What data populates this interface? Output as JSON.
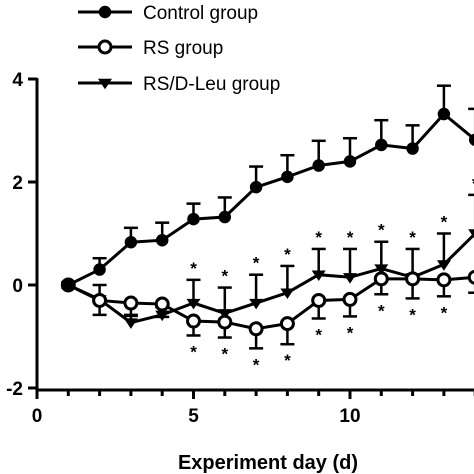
{
  "chart_data": {
    "type": "line",
    "title": "",
    "xlabel": "Experiment day (d)",
    "ylabel": "",
    "xlim": [
      0,
      14.5
    ],
    "ylim": [
      -2,
      4
    ],
    "x_ticks": [
      "0",
      "5",
      "10"
    ],
    "y_ticks": [
      "4",
      "2",
      "0",
      "-2"
    ],
    "legend_position": "top-left",
    "grid": false,
    "series": [
      {
        "name": "Control group",
        "marker": "filled-circle",
        "x": [
          1,
          2,
          3,
          4,
          5,
          6,
          7,
          8,
          9,
          10,
          11,
          12,
          13,
          14
        ],
        "y": [
          0,
          0.3,
          0.83,
          0.87,
          1.28,
          1.32,
          1.9,
          2.1,
          2.32,
          2.4,
          2.72,
          2.65,
          3.32,
          2.82
        ],
        "error": [
          0.05,
          0.22,
          0.28,
          0.34,
          0.3,
          0.38,
          0.4,
          0.42,
          0.48,
          0.45,
          0.48,
          0.45,
          0.55,
          0.6
        ]
      },
      {
        "name": "RS group",
        "marker": "open-circle",
        "x": [
          1,
          2,
          3,
          4,
          5,
          6,
          7,
          8,
          9,
          10,
          11,
          12,
          13,
          14
        ],
        "y": [
          0,
          -0.3,
          -0.35,
          -0.37,
          -0.7,
          -0.72,
          -0.85,
          -0.75,
          -0.3,
          -0.28,
          0.12,
          0.12,
          0.1,
          0.15
        ],
        "error": [
          0.05,
          0.28,
          0.25,
          0.25,
          0.28,
          0.3,
          0.38,
          0.4,
          0.35,
          0.33,
          0.3,
          0.38,
          0.32,
          0.3
        ]
      },
      {
        "name": "RS/D-Leu group",
        "marker": "filled-triangle-down",
        "x": [
          1,
          2,
          3,
          4,
          5,
          6,
          7,
          8,
          9,
          10,
          11,
          12,
          13,
          14
        ],
        "y": [
          0,
          -0.28,
          -0.73,
          -0.58,
          -0.35,
          -0.55,
          -0.35,
          -0.15,
          0.2,
          0.15,
          0.32,
          0.15,
          0.4,
          1.0
        ],
        "error": [
          0.05,
          0.28,
          0.15,
          0.15,
          0.45,
          0.5,
          0.55,
          0.52,
          0.5,
          0.55,
          0.52,
          0.55,
          0.6,
          0.75
        ]
      }
    ],
    "significance_marks": {
      "symbol": "*",
      "above_rsdleu_days": [
        5,
        6,
        7,
        8,
        9,
        10,
        11,
        12,
        13,
        14
      ],
      "below_rs_days": [
        5,
        6,
        7,
        8,
        9,
        10,
        11,
        12,
        13
      ]
    }
  }
}
